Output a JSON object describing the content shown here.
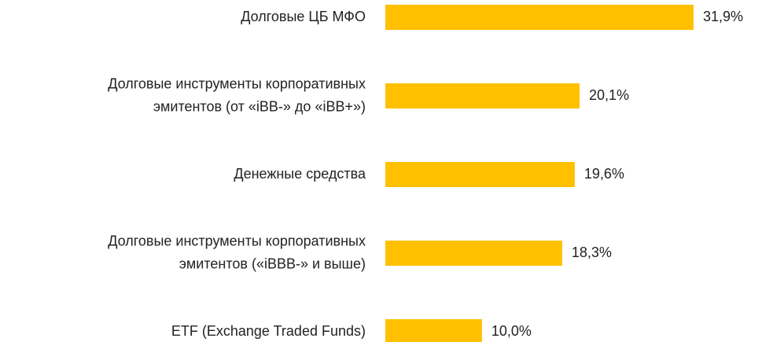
{
  "chart_data": {
    "type": "barh",
    "categories": [
      "Долговые ЦБ МФО",
      "Долговые инструменты корпоративных\nэмитентов (от «iBB-» до «iBB+»)",
      "Денежные средства",
      "Долговые инструменты корпоративных\nэмитентов («iBBB-» и выше)",
      "ETF (Exchange Traded Funds)"
    ],
    "values": [
      31.9,
      20.1,
      19.6,
      18.3,
      10.0
    ],
    "value_labels": [
      "31,9%",
      "20,1%",
      "19,6%",
      "18,3%",
      "10,0%"
    ],
    "color": "#ffc000"
  }
}
